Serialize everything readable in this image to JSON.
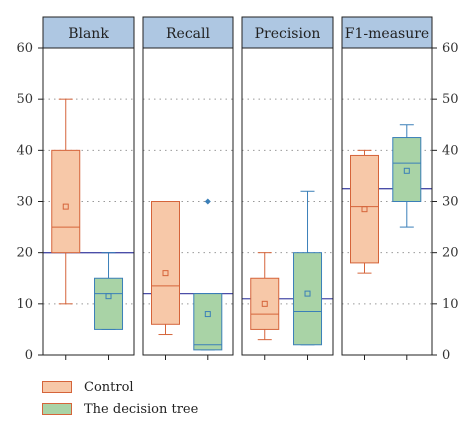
{
  "chart_data": {
    "type": "box",
    "panels": [
      {
        "label": "Blank",
        "reference": 20,
        "series": [
          {
            "name": "Control",
            "whisker_low": 10,
            "q1": 20,
            "median": 25,
            "q3": 40,
            "whisker_high": 50,
            "mean": 29,
            "outliers": []
          },
          {
            "name": "The decision tree",
            "whisker_low": 5,
            "q1": 5,
            "median": 12,
            "q3": 15,
            "whisker_high": 20,
            "mean": 11.5,
            "outliers": []
          }
        ]
      },
      {
        "label": "Recall",
        "reference": 12,
        "series": [
          {
            "name": "Control",
            "whisker_low": 4,
            "q1": 6,
            "median": 13.5,
            "q3": 30,
            "whisker_high": 30,
            "mean": 16,
            "outliers": []
          },
          {
            "name": "The decision tree",
            "whisker_low": 1,
            "q1": 1,
            "median": 2,
            "q3": 12,
            "whisker_high": 12,
            "mean": 8,
            "outliers": [
              30
            ]
          }
        ]
      },
      {
        "label": "Precision",
        "reference": 11,
        "series": [
          {
            "name": "Control",
            "whisker_low": 3,
            "q1": 5,
            "median": 8,
            "q3": 15,
            "whisker_high": 20,
            "mean": 10,
            "outliers": []
          },
          {
            "name": "The decision tree",
            "whisker_low": 2,
            "q1": 2,
            "median": 8.5,
            "q3": 20,
            "whisker_high": 32,
            "mean": 12,
            "outliers": []
          }
        ]
      },
      {
        "label": "F1-measure",
        "reference": 32.5,
        "series": [
          {
            "name": "Control",
            "whisker_low": 16,
            "q1": 18,
            "median": 29,
            "q3": 39,
            "whisker_high": 40,
            "mean": 28.5,
            "outliers": []
          },
          {
            "name": "The decision tree",
            "whisker_low": 25,
            "q1": 30,
            "median": 37.5,
            "q3": 42.5,
            "whisker_high": 45,
            "mean": 36,
            "outliers": []
          }
        ]
      }
    ],
    "yticks": [
      0,
      10,
      20,
      30,
      40,
      50,
      60
    ],
    "ylim": [
      0,
      60
    ],
    "grid": "horizontal dotted",
    "legend_position": "bottom-left",
    "legend": [
      "Control",
      "The decision tree"
    ]
  },
  "colors": {
    "control_fill": "#f7c8a8",
    "control_stroke": "#d5643a",
    "tree_fill": "#a9d3a6",
    "tree_stroke": "#3a7fb8",
    "strip_fill": "#aec7e2",
    "reference_line": "#4a4ea8",
    "frame": "#222222"
  }
}
